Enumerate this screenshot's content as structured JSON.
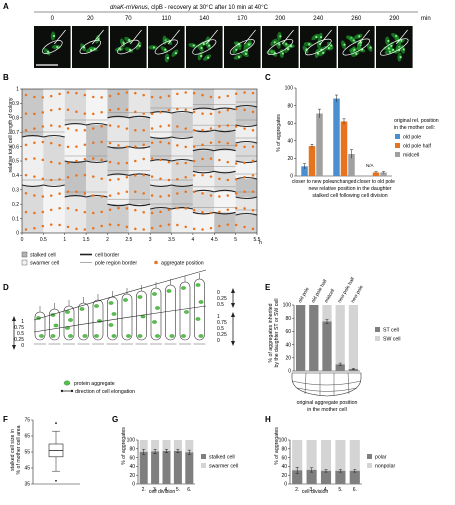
{
  "panel_a": {
    "letter": "A",
    "title_prefix": "dnaK-mVenus",
    "title_suffix": ", clpB - recovery at 30°C after 10 min at 40°C",
    "times": [
      "0",
      "20",
      "70",
      "110",
      "140",
      "170",
      "200",
      "240",
      "260",
      "290"
    ],
    "unit": "min"
  },
  "panel_b": {
    "letter": "B",
    "ylabel": "relative total cell length of colony",
    "yticks": [
      "0",
      "0.1",
      "0.2",
      "0.3",
      "0.4",
      "0.5",
      "0.6",
      "0.7",
      "0.8",
      "0.9",
      "1"
    ],
    "xticks": [
      "0",
      "0.5",
      "1",
      "1.5",
      "2",
      "2.5",
      "3",
      "3.5",
      "4",
      "4.5",
      "5",
      "5.5"
    ],
    "xunit": "h",
    "legend": {
      "stalked": "stalked cell",
      "swarmer": "swarmer cell",
      "border": "cell border",
      "pole": "pole region border",
      "aggregate": "aggregate position"
    }
  },
  "panel_c": {
    "letter": "C",
    "ylabel": "% of aggregates",
    "yticks": [
      "0",
      "20",
      "40",
      "60",
      "80",
      "100"
    ],
    "groups": [
      "closer to new pole",
      "unchanged",
      "closer to old pole"
    ],
    "na_label": "N/A",
    "xlabel_line1": "new relative position in the daughter",
    "xlabel_line2": "stalked cell following cell division",
    "legend_title_line1": "original rel. position",
    "legend_title_line2": "in the mother cell:",
    "legend": [
      "old pole",
      "old pole half",
      "midcell"
    ]
  },
  "panel_d": {
    "letter": "D",
    "left_ticks": [
      "1",
      "0.75",
      "0.5",
      "0.25",
      "0"
    ],
    "right_ticks_top": [
      "0",
      "0.25",
      "0.5"
    ],
    "right_ticks_bottom": [
      "1",
      "0.75",
      "0.5",
      "0.25",
      "0"
    ],
    "legend_aggregate": "protein aggregate",
    "legend_elongation": "direction of cell elongation"
  },
  "panel_e": {
    "letter": "E",
    "ylabel_line1": "% of aggregates inherited",
    "ylabel_line2": "by the daughter ST or SW cell",
    "categories": [
      "old pole",
      "old pole half",
      "midcell",
      "new pole half",
      "new pole"
    ],
    "yticks": [
      "0",
      "20",
      "40",
      "60",
      "80",
      "100"
    ],
    "legend": [
      "ST cell",
      "SW cell"
    ],
    "xlabel_line1": "original aggregate position",
    "xlabel_line2": "in the mother cell"
  },
  "panel_f": {
    "letter": "F",
    "ylabel_line1": "stalked cell size in",
    "ylabel_line2": "% of mother cell area",
    "yticks": [
      "35",
      "45",
      "55",
      "65",
      "75"
    ]
  },
  "panel_g": {
    "letter": "G",
    "ylabel": "% of aggregates",
    "xlabel": "cell division",
    "categories": [
      "2.",
      "3.",
      "4.",
      "5.",
      "6."
    ],
    "yticks": [
      "0",
      "20",
      "40",
      "60",
      "80",
      "100"
    ],
    "legend": [
      "stalked cell",
      "swarmer cell"
    ]
  },
  "panel_h": {
    "letter": "H",
    "ylabel": "% of aggregates",
    "xlabel": "cell division",
    "categories": [
      "2.",
      "3.",
      "4.",
      "5.",
      "6."
    ],
    "yticks": [
      "0",
      "20",
      "40",
      "60",
      "80",
      "100"
    ],
    "legend": [
      "polar",
      "nonpolar"
    ]
  },
  "colors": {
    "blue": "#4a90d0",
    "orange": "#e8731f",
    "gray": "#a0a0a0",
    "dark": "#7f7f7f",
    "light": "#d4d4d4",
    "green": "#55c04a"
  },
  "chart_data": [
    {
      "type": "bar",
      "panel": "C",
      "categories": [
        "closer to new pole",
        "unchanged",
        "closer to old pole"
      ],
      "ylim": [
        0,
        100
      ],
      "ylabel": "% of aggregates",
      "series": [
        {
          "name": "old pole",
          "values": [
            11,
            88,
            null
          ],
          "errors": [
            3,
            4,
            null
          ]
        },
        {
          "name": "old pole half",
          "values": [
            34,
            62,
            4
          ],
          "errors": [
            2,
            3,
            1
          ]
        },
        {
          "name": "midcell",
          "values": [
            71,
            25,
            4
          ],
          "errors": [
            5,
            5,
            1
          ]
        }
      ]
    },
    {
      "type": "bar",
      "panel": "E",
      "categories": [
        "old pole",
        "old pole half",
        "midcell",
        "new pole half",
        "new pole"
      ],
      "ylim": [
        0,
        100
      ],
      "series": [
        {
          "name": "ST cell",
          "values": [
            100,
            100,
            75,
            10,
            3
          ],
          "errors": [
            0,
            0,
            3,
            2,
            1
          ]
        },
        {
          "name": "SW cell",
          "values": [
            0,
            0,
            25,
            90,
            97
          ]
        }
      ]
    },
    {
      "type": "box",
      "panel": "F",
      "ylim": [
        35,
        75
      ],
      "median": 56,
      "q1": 52,
      "q3": 60,
      "whisker_low": 43,
      "whisker_high": 68,
      "outliers": [
        73,
        37
      ]
    },
    {
      "type": "bar",
      "panel": "G",
      "categories": [
        "2.",
        "3.",
        "4.",
        "5.",
        "6."
      ],
      "ylim": [
        0,
        100
      ],
      "series": [
        {
          "name": "stalked cell",
          "values": [
            73,
            74,
            75,
            75,
            72
          ],
          "errors": [
            6,
            5,
            4,
            4,
            5
          ]
        },
        {
          "name": "swarmer cell",
          "values": [
            27,
            26,
            25,
            25,
            28
          ]
        }
      ]
    },
    {
      "type": "bar",
      "panel": "H",
      "categories": [
        "2.",
        "3.",
        "4.",
        "5.",
        "6."
      ],
      "ylim": [
        0,
        100
      ],
      "series": [
        {
          "name": "polar",
          "values": [
            31,
            32,
            30,
            30,
            30
          ],
          "errors": [
            7,
            5,
            3,
            3,
            3
          ]
        },
        {
          "name": "nonpolar",
          "values": [
            69,
            68,
            70,
            70,
            70
          ]
        }
      ]
    }
  ]
}
